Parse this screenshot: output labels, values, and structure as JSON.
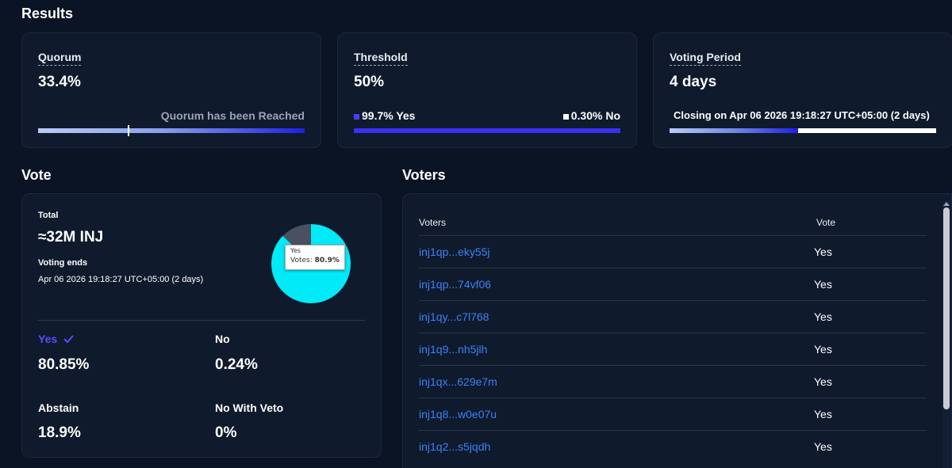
{
  "results": {
    "title": "Results",
    "quorum": {
      "label": "Quorum",
      "value": "33.4%",
      "status": "Quorum has been Reached",
      "progress": 0.334
    },
    "threshold": {
      "label": "Threshold",
      "value": "50%",
      "yes_label": "99.7% Yes",
      "no_label": "0.30% No",
      "yes_fraction": 0.997
    },
    "voting_period": {
      "label": "Voting Period",
      "value": "4 days",
      "closing": "Closing on Apr 06 2026 19:18:27 UTC+05:00 (2 days)",
      "elapsed_fraction": 0.48
    }
  },
  "vote": {
    "title": "Vote",
    "total_label": "Total",
    "total_value": "≈32M INJ",
    "ends_label": "Voting ends",
    "ends_value": "Apr 06 2026 19:18:27 UTC+05:00 (2 days)",
    "tooltip": {
      "title": "Yes",
      "text": "Votes: ",
      "value": "80.9%"
    },
    "options": [
      {
        "label": "Yes",
        "value": "80.85%",
        "selected": true
      },
      {
        "label": "No",
        "value": "0.24%"
      },
      {
        "label": "Abstain",
        "value": "18.9%"
      },
      {
        "label": "No With Veto",
        "value": "0%"
      }
    ],
    "colors": {
      "yes": "#00eaf7",
      "abstain": "#4a5060",
      "selected": "#5a4dff"
    }
  },
  "voters": {
    "title": "Voters",
    "col_voters": "Voters",
    "col_vote": "Vote",
    "rows": [
      {
        "address": "inj1qp...eky55j",
        "vote": "Yes"
      },
      {
        "address": "inj1qp...74vf06",
        "vote": "Yes"
      },
      {
        "address": "inj1qy...c7l768",
        "vote": "Yes"
      },
      {
        "address": "inj1q9...nh5jlh",
        "vote": "Yes"
      },
      {
        "address": "inj1qx...629e7m",
        "vote": "Yes"
      },
      {
        "address": "inj1q8...w0e07u",
        "vote": "Yes"
      },
      {
        "address": "inj1q2...s5jqdh",
        "vote": "Yes"
      }
    ]
  }
}
